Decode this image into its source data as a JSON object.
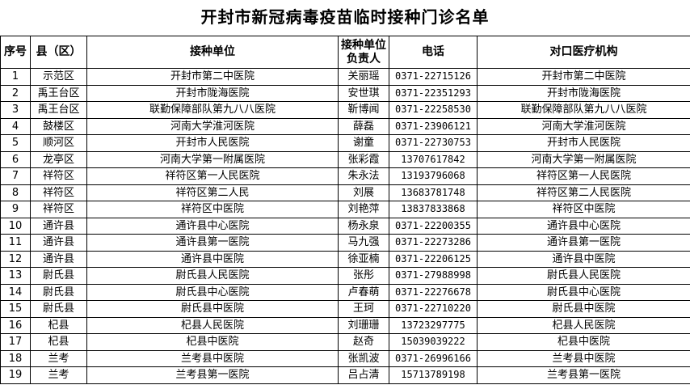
{
  "title": "开封市新冠病毒疫苗临时接种门诊名单",
  "table": {
    "headers": [
      "序号",
      "县（区）",
      "接种单位",
      "接种单位负责人",
      "电话",
      "对口医疗机构"
    ],
    "header_lines": {
      "contact_line1": "接种单位",
      "contact_line2": "负责人"
    },
    "rows": [
      [
        "1",
        "示范区",
        "开封市第二中医院",
        "关丽瑶",
        "0371-22715126",
        "开封市第二中医院"
      ],
      [
        "2",
        "禹王台区",
        "开封市陇海医院",
        "安世琪",
        "0371-22351293",
        "开封市陇海医院"
      ],
      [
        "3",
        "禹王台区",
        "联勤保障部队第九八八医院",
        "靳博闻",
        "0371-22258530",
        "联勤保障部队第九八八医院"
      ],
      [
        "4",
        "鼓楼区",
        "河南大学淮河医院",
        "薛磊",
        "0371-23906121",
        "河南大学淮河医院"
      ],
      [
        "5",
        "顺河区",
        "开封市人民医院",
        "谢童",
        "0371-22730753",
        "开封市人民医院"
      ],
      [
        "6",
        "龙亭区",
        "河南大学第一附属医院",
        "张彩霞",
        "13707617842",
        "河南大学第一附属医院"
      ],
      [
        "7",
        "祥符区",
        "祥符区第一人民医院",
        "朱永法",
        "13193796068",
        "祥符区第一人民医院"
      ],
      [
        "8",
        "祥符区",
        "祥符区第二人民",
        "刘展",
        "13683781748",
        "祥符区第二人民医院"
      ],
      [
        "9",
        "祥符区",
        "祥符区中医院",
        "刘艳萍",
        "13837833868",
        "祥符区中医院"
      ],
      [
        "10",
        "通许县",
        "通许县中心医院",
        "杨永泉",
        "0371-22200355",
        "通许县中心医院"
      ],
      [
        "11",
        "通许县",
        "通许县第一医院",
        "马九强",
        "0371-22273286",
        "通许县第一医院"
      ],
      [
        "12",
        "通许县",
        "通许县中医院",
        "徐亚楠",
        "0371-22206125",
        "通许县中医院"
      ],
      [
        "13",
        "尉氏县",
        "尉氏县人民医院",
        "张彤",
        "0371-27988998",
        "尉氏县人民医院"
      ],
      [
        "14",
        "尉氏县",
        "尉氏县中心医院",
        "卢春萌",
        "0371-22276678",
        "尉氏县中心医院"
      ],
      [
        "15",
        "尉氏县",
        "尉氏县中医院",
        "王珂",
        "0371-22710220",
        "尉氏县中医院"
      ],
      [
        "16",
        "杞县",
        "杞县人民医院",
        "刘珊珊",
        "13723297775",
        "杞县人民医院"
      ],
      [
        "17",
        "杞县",
        "杞县中医院",
        "赵奇",
        "15039039222",
        "杞县中医院"
      ],
      [
        "18",
        "兰考",
        "兰考县中医院",
        "张凯波",
        "0371-26996166",
        "兰考县中医院"
      ],
      [
        "19",
        "兰考",
        "兰考县第一医院",
        "吕占清",
        "15713789198",
        "兰考县第一医院"
      ]
    ]
  }
}
